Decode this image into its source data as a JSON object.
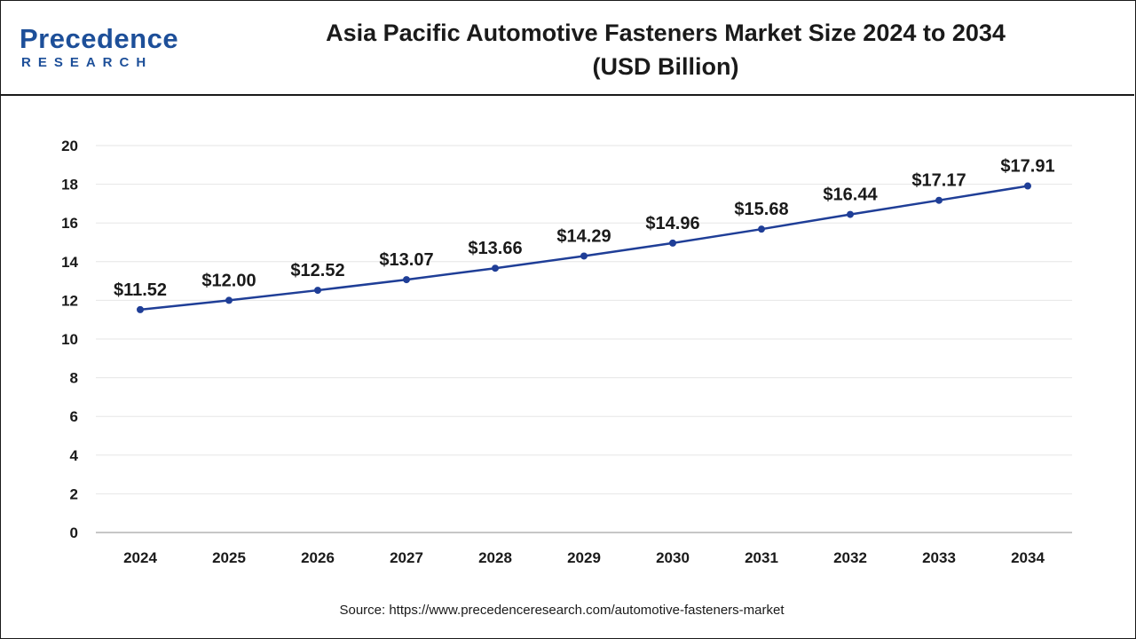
{
  "header": {
    "logo_main": "Precedence",
    "logo_sub": "RESEARCH",
    "title_line1": "Asia Pacific Automotive Fasteners Market Size 2024 to 2034",
    "title_line2": "(USD Billion)"
  },
  "footer": {
    "source": "Source: https://www.precedenceresearch.com/automotive-fasteners-market"
  },
  "colors": {
    "line": "#1f3e97",
    "grid": "#e6e6e6",
    "axis": "#b3b3b3",
    "brand": "#1d4f99"
  },
  "chart_data": {
    "type": "line",
    "title": "Asia Pacific Automotive Fasteners Market Size 2024 to 2034 (USD Billion)",
    "categories": [
      "2024",
      "2025",
      "2026",
      "2027",
      "2028",
      "2029",
      "2030",
      "2031",
      "2032",
      "2033",
      "2034"
    ],
    "values": [
      11.52,
      12.0,
      12.52,
      13.07,
      13.66,
      14.29,
      14.96,
      15.68,
      16.44,
      17.17,
      17.91
    ],
    "data_labels": [
      "$11.52",
      "$12.00",
      "$12.52",
      "$13.07",
      "$13.66",
      "$14.29",
      "$14.96",
      "$15.68",
      "$16.44",
      "$17.17",
      "$17.91"
    ],
    "y_ticks": [
      0,
      2,
      4,
      6,
      8,
      10,
      12,
      14,
      16,
      18,
      20
    ],
    "ylim": [
      0,
      20
    ],
    "grid": true,
    "legend": "none",
    "xlabel": "",
    "ylabel": ""
  }
}
